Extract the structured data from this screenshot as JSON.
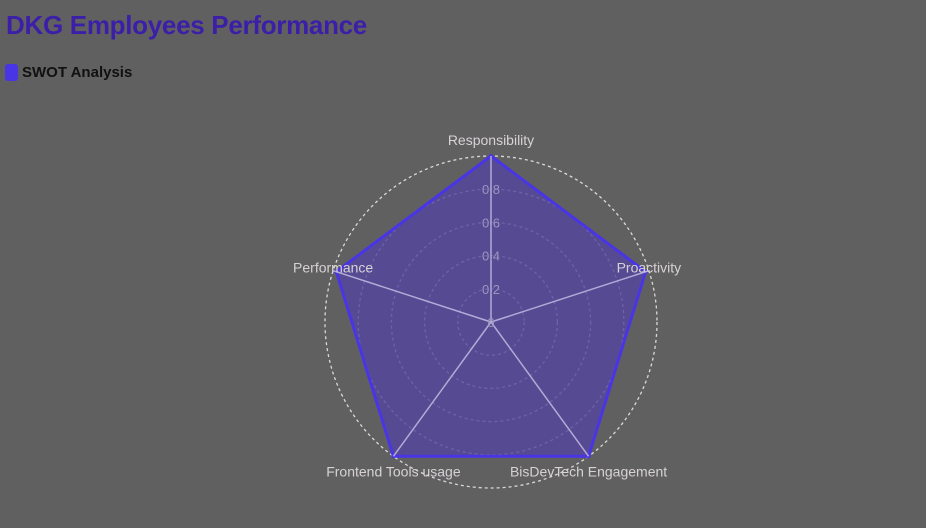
{
  "title": "DKG Employees Performance",
  "colors": {
    "background": "#616060",
    "title": "#3b1fa8",
    "series_stroke": "#4a35e6",
    "series_fill": "#54479e",
    "grid": "#e8e6ea",
    "spokes": "#b3aad8"
  },
  "chart_data": {
    "type": "radar",
    "title": "DKG Employees Performance",
    "categories": [
      "Responsibility",
      "Proactivity",
      "BisDevTech Engagement",
      "Frontend Tools usage",
      "Performance"
    ],
    "rlim": [
      0,
      1
    ],
    "ticks": [
      0,
      0.2,
      0.4,
      0.6,
      0.8
    ],
    "tick_labels": [
      "0",
      "0.2",
      "0.4",
      "0.6",
      "0.8"
    ],
    "grid": true,
    "grid_style": "dashed-circles",
    "legend": "top-left",
    "series": [
      {
        "name": "SWOT Analysis",
        "values": [
          1.0,
          0.98,
          1.0,
          1.0,
          0.98
        ]
      }
    ]
  }
}
